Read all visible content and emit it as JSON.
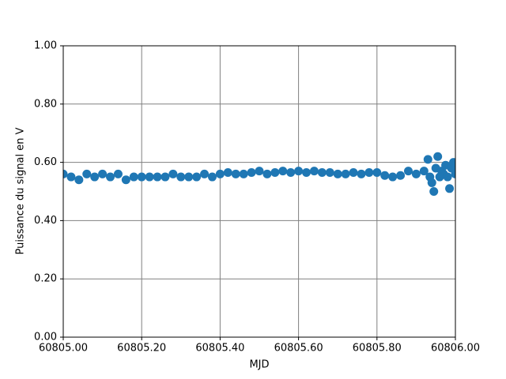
{
  "chart_data": {
    "type": "scatter",
    "xlabel": "MJD",
    "ylabel": "Puissance du signal en V",
    "xlim": [
      60805,
      60806
    ],
    "xticks": [
      {
        "value": 60805,
        "label": "60805.00"
      },
      {
        "value": 60805.2,
        "label": "60805.20"
      },
      {
        "value": 60805.4,
        "label": "60805.40"
      },
      {
        "value": 60805.6,
        "label": "60805.60"
      },
      {
        "value": 60805.8,
        "label": "60805.80"
      },
      {
        "value": 60806,
        "label": "60806.00"
      }
    ],
    "ylim": [
      0,
      1
    ],
    "yticks": [
      {
        "value": 0,
        "label": "0.00"
      },
      {
        "value": 0.2,
        "label": "0.20"
      },
      {
        "value": 0.4,
        "label": "0.40"
      },
      {
        "value": 0.6,
        "label": "0.60"
      },
      {
        "value": 0.8,
        "label": "0.80"
      },
      {
        "value": 1,
        "label": "1.00"
      }
    ],
    "grid": true,
    "color": "#1f77b4",
    "x": [
      60805,
      60805.02,
      60805.04,
      60805.06,
      60805.08,
      60805.1,
      60805.12,
      60805.14,
      60805.16,
      60805.18,
      60805.2,
      60805.22,
      60805.24,
      60805.26,
      60805.28,
      60805.3,
      60805.32,
      60805.34,
      60805.36,
      60805.38,
      60805.4,
      60805.42,
      60805.44,
      60805.46,
      60805.48,
      60805.5,
      60805.52,
      60805.54,
      60805.56,
      60805.58,
      60805.6,
      60805.62,
      60805.64,
      60805.66,
      60805.68,
      60805.7,
      60805.72,
      60805.74,
      60805.76,
      60805.78,
      60805.8,
      60805.82,
      60805.84,
      60805.86,
      60805.88,
      60805.9,
      60805.92,
      60805.93,
      60805.935,
      60805.94,
      60805.945,
      60805.95,
      60805.955,
      60805.96,
      60805.965,
      60805.97,
      60805.975,
      60805.98,
      60805.985,
      60805.99,
      60805.995,
      60806
    ],
    "values": [
      0.56,
      0.55,
      0.54,
      0.56,
      0.55,
      0.56,
      0.55,
      0.56,
      0.54,
      0.55,
      0.55,
      0.55,
      0.55,
      0.55,
      0.56,
      0.55,
      0.55,
      0.55,
      0.56,
      0.55,
      0.56,
      0.565,
      0.56,
      0.56,
      0.565,
      0.57,
      0.56,
      0.565,
      0.57,
      0.565,
      0.57,
      0.565,
      0.57,
      0.565,
      0.565,
      0.56,
      0.56,
      0.565,
      0.56,
      0.565,
      0.565,
      0.555,
      0.55,
      0.555,
      0.57,
      0.56,
      0.57,
      0.61,
      0.55,
      0.53,
      0.5,
      0.58,
      0.62,
      0.55,
      0.57,
      0.56,
      0.59,
      0.55,
      0.51,
      0.58,
      0.6,
      0.56
    ]
  }
}
